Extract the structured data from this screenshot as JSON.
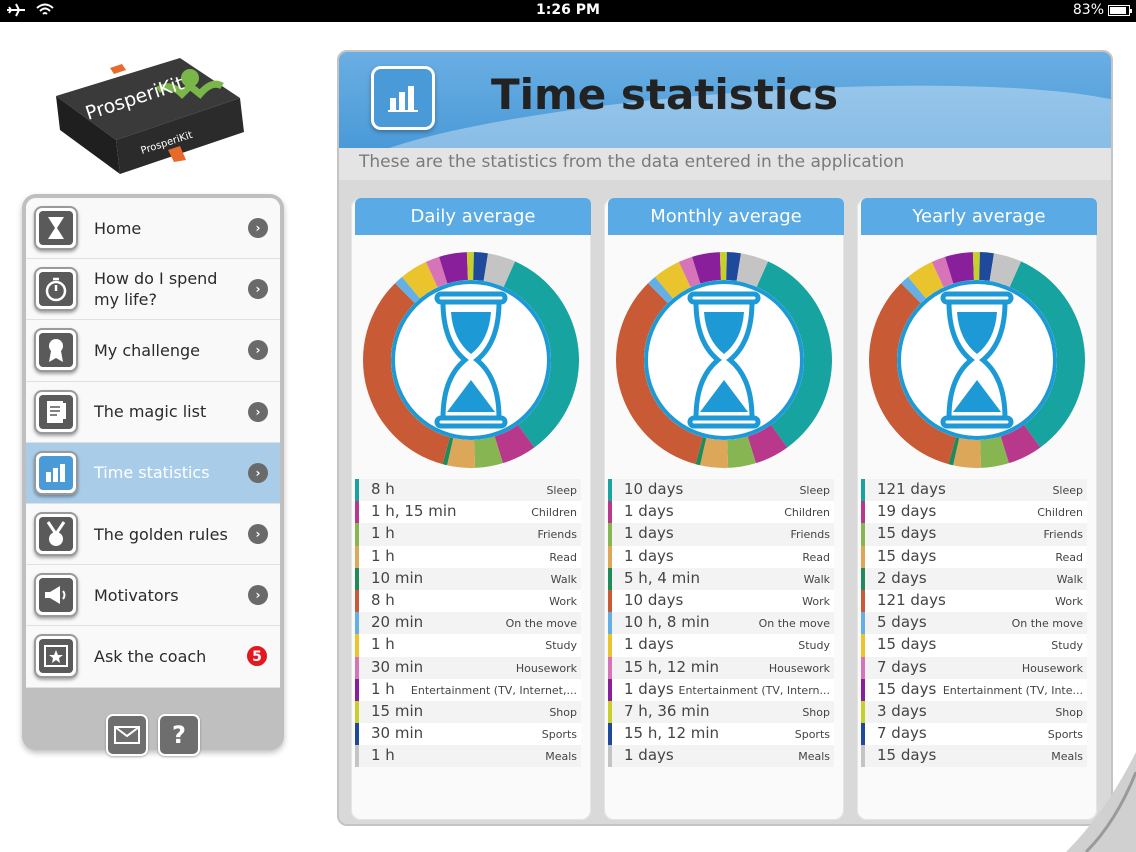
{
  "status_bar": {
    "time": "1:26 PM",
    "battery": "83%"
  },
  "logo": {
    "brand_top": "ProsperiKit",
    "brand_side": "ProsperiKit"
  },
  "sidebar": {
    "items": [
      {
        "label": "Home",
        "icon": "hourglass-icon"
      },
      {
        "label": "How do I spend my life?",
        "icon": "stopwatch-icon"
      },
      {
        "label": "My challenge",
        "icon": "award-icon"
      },
      {
        "label": "The magic list",
        "icon": "notepad-icon"
      },
      {
        "label": "Time statistics",
        "icon": "bar-chart-icon",
        "active": true
      },
      {
        "label": "The golden rules",
        "icon": "medal-icon"
      },
      {
        "label": "Motivators",
        "icon": "megaphone-icon"
      },
      {
        "label": "Ask the coach",
        "icon": "star-board-icon",
        "badge": "5"
      }
    ],
    "footer": {
      "mail_icon": "envelope-icon",
      "help_label": "?"
    }
  },
  "main": {
    "title": "Time statistics",
    "subtitle": "These are the statistics from the data entered in the application",
    "columns": [
      {
        "heading": "Daily average",
        "rows": [
          {
            "value": "8 h",
            "category": "Sleep"
          },
          {
            "value": "1 h, 15 min",
            "category": "Children"
          },
          {
            "value": "1 h",
            "category": "Friends"
          },
          {
            "value": "1 h",
            "category": "Read"
          },
          {
            "value": "10 min",
            "category": "Walk"
          },
          {
            "value": "8 h",
            "category": "Work"
          },
          {
            "value": "20 min",
            "category": "On the move"
          },
          {
            "value": "1 h",
            "category": "Study"
          },
          {
            "value": "30 min",
            "category": "Housework"
          },
          {
            "value": "1 h",
            "category": "Entertainment (TV, Internet,..."
          },
          {
            "value": "15 min",
            "category": "Shop"
          },
          {
            "value": "30 min",
            "category": "Sports"
          },
          {
            "value": "1 h",
            "category": "Meals"
          }
        ]
      },
      {
        "heading": "Monthly average",
        "rows": [
          {
            "value": "10 days",
            "category": "Sleep"
          },
          {
            "value": "1 days",
            "category": "Children"
          },
          {
            "value": "1 days",
            "category": "Friends"
          },
          {
            "value": "1 days",
            "category": "Read"
          },
          {
            "value": "5 h, 4 min",
            "category": "Walk"
          },
          {
            "value": "10 days",
            "category": "Work"
          },
          {
            "value": "10 h, 8 min",
            "category": "On the move"
          },
          {
            "value": "1 days",
            "category": "Study"
          },
          {
            "value": "15 h, 12 min",
            "category": "Housework"
          },
          {
            "value": "1 days",
            "category": "Entertainment (TV, Intern..."
          },
          {
            "value": "7 h, 36 min",
            "category": "Shop"
          },
          {
            "value": "15 h, 12 min",
            "category": "Sports"
          },
          {
            "value": "1 days",
            "category": "Meals"
          }
        ]
      },
      {
        "heading": "Yearly average",
        "rows": [
          {
            "value": "121 days",
            "category": "Sleep"
          },
          {
            "value": "19 days",
            "category": "Children"
          },
          {
            "value": "15 days",
            "category": "Friends"
          },
          {
            "value": "15 days",
            "category": "Read"
          },
          {
            "value": "2 days",
            "category": "Walk"
          },
          {
            "value": "121 days",
            "category": "Work"
          },
          {
            "value": "5 days",
            "category": "On the move"
          },
          {
            "value": "15 days",
            "category": "Study"
          },
          {
            "value": "7 days",
            "category": "Housework"
          },
          {
            "value": "15 days",
            "category": "Entertainment (TV, Inte..."
          },
          {
            "value": "3 days",
            "category": "Shop"
          },
          {
            "value": "7 days",
            "category": "Sports"
          },
          {
            "value": "15 days",
            "category": "Meals"
          }
        ]
      }
    ]
  },
  "chart_data": {
    "type": "pie",
    "categories": [
      "Sleep",
      "Children",
      "Friends",
      "Read",
      "Walk",
      "Work",
      "On the move",
      "Study",
      "Housework",
      "Entertainment (TV, Internet,...",
      "Shop",
      "Sports",
      "Meals"
    ],
    "values": [
      480,
      75,
      60,
      60,
      10,
      480,
      20,
      60,
      30,
      60,
      15,
      30,
      60
    ],
    "colors": [
      "#17a3a0",
      "#b8398c",
      "#87b552",
      "#dda75a",
      "#1f8a5a",
      "#c85a36",
      "#64b0e4",
      "#eac42c",
      "#d773b8",
      "#8a1f9b",
      "#c7cf2c",
      "#1f4a9b",
      "#c4c4c4"
    ]
  },
  "colors": {
    "accent": "#5aaae6",
    "active_menu": "#a9cde9",
    "badge": "#e5171f"
  }
}
